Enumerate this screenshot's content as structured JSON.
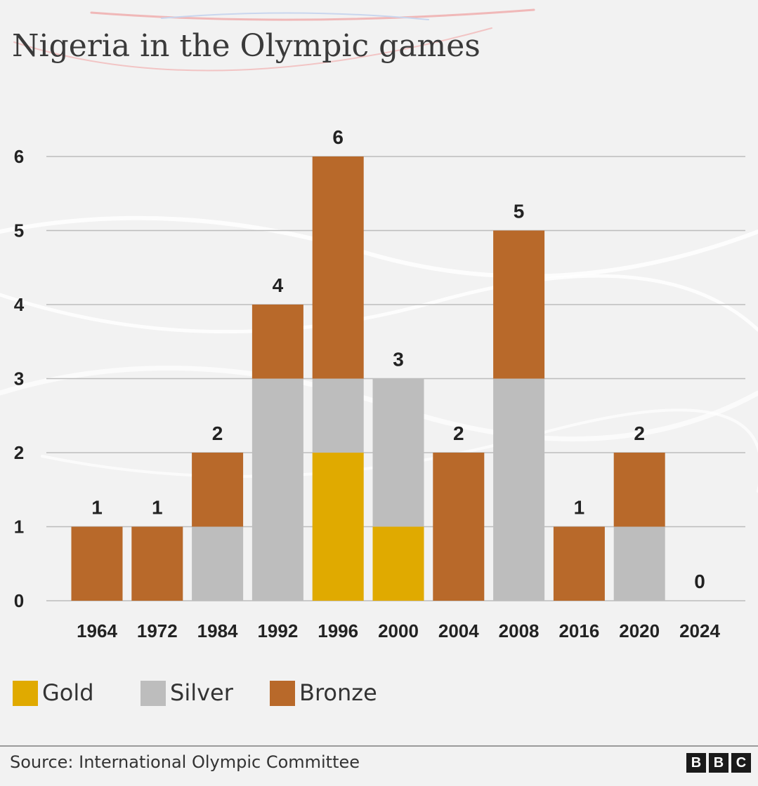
{
  "chart_data": {
    "type": "bar",
    "stacked": true,
    "title": "Nigeria in the Olympic games",
    "categories": [
      "1964",
      "1972",
      "1984",
      "1992",
      "1996",
      "2000",
      "2004",
      "2008",
      "2016",
      "2020",
      "2024"
    ],
    "series": [
      {
        "name": "Gold",
        "color": "#e0aa00",
        "values": [
          0,
          0,
          0,
          0,
          2,
          1,
          0,
          0,
          0,
          0,
          0
        ]
      },
      {
        "name": "Silver",
        "color": "#bdbdbd",
        "values": [
          0,
          0,
          1,
          3,
          1,
          2,
          0,
          3,
          0,
          1,
          0
        ]
      },
      {
        "name": "Bronze",
        "color": "#b8692a",
        "values": [
          1,
          1,
          1,
          1,
          3,
          0,
          2,
          2,
          1,
          1,
          0
        ]
      }
    ],
    "totals": [
      "1",
      "1",
      "2",
      "4",
      "6",
      "3",
      "2",
      "5",
      "1",
      "2",
      "0"
    ],
    "yticks": [
      "0",
      "1",
      "2",
      "3",
      "4",
      "5",
      "6"
    ],
    "ylim": [
      0,
      6
    ],
    "grid": true,
    "legend_position": "bottom-left"
  },
  "footer": {
    "source": "Source: International Olympic Committee",
    "logo_letters": [
      "B",
      "B",
      "C"
    ]
  }
}
